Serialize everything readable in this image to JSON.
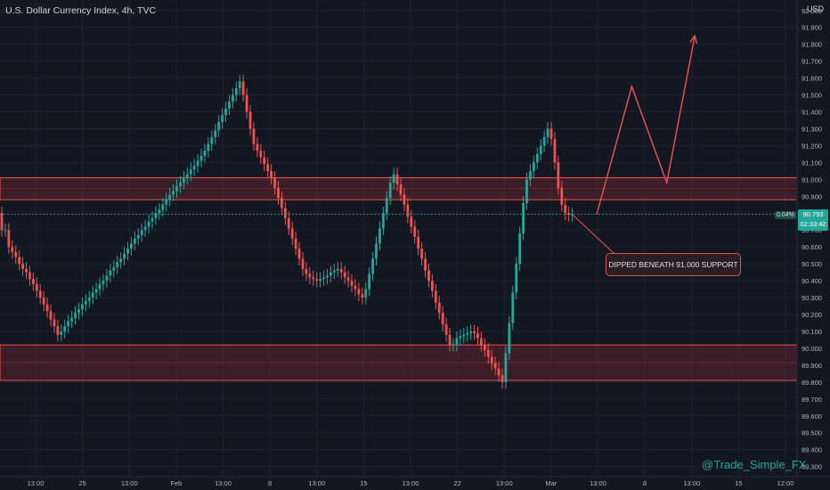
{
  "header": {
    "title": "U.S. Dollar Currency Index, 4h, TVC",
    "currency": "USD"
  },
  "last_price": {
    "price": "90.793",
    "countdown": "02:33:42",
    "change_pct": "0.04%"
  },
  "annotation": {
    "text": "DIPPED BENEATH 91.000 SUPPORT"
  },
  "watermark": {
    "text": "@Trade_Simple_FX"
  },
  "colors": {
    "background": "#131722",
    "up": "#26a69a",
    "down": "#ef5350",
    "zone": "#b2303a",
    "arrow": "#ef5350"
  },
  "chart_data": {
    "type": "candlestick",
    "title": "U.S. Dollar Currency Index, 4h, TVC",
    "ylim": [
      89.24,
      92.02
    ],
    "y_ticks": [
      "92.000",
      "91.900",
      "91.800",
      "91.700",
      "91.600",
      "91.500",
      "91.400",
      "91.300",
      "91.200",
      "91.100",
      "91.000",
      "90.900",
      "90.800",
      "90.700",
      "90.600",
      "90.500",
      "90.400",
      "90.300",
      "90.200",
      "90.100",
      "90.000",
      "89.900",
      "89.800",
      "89.700",
      "89.600",
      "89.500",
      "89.400",
      "89.300"
    ],
    "x_ticks": [
      "13:00",
      "25",
      "13:00",
      "Feb",
      "13:00",
      "8",
      "13:00",
      "15",
      "13:00",
      "22",
      "13:00",
      "Mar",
      "13:00",
      "8",
      "13:00",
      "15",
      "12:00"
    ],
    "grid": true,
    "zones": [
      {
        "name": "resistance",
        "from": 90.88,
        "to": 91.01
      },
      {
        "name": "support",
        "from": 89.81,
        "to": 90.02
      }
    ],
    "projected_path": [
      {
        "index": 170,
        "price": 90.793
      },
      {
        "index": 180,
        "price": 91.55
      },
      {
        "index": 190,
        "price": 90.98
      },
      {
        "index": 198,
        "price": 91.85
      }
    ],
    "candles": [
      [
        90.8,
        90.7
      ],
      [
        90.7,
        90.7
      ],
      [
        90.7,
        90.6
      ],
      [
        90.6,
        90.57
      ],
      [
        90.57,
        90.54
      ],
      [
        90.54,
        90.5
      ],
      [
        90.5,
        90.47
      ],
      [
        90.47,
        90.45
      ],
      [
        90.45,
        90.41
      ],
      [
        90.41,
        90.38
      ],
      [
        90.38,
        90.34
      ],
      [
        90.34,
        90.3
      ],
      [
        90.3,
        90.26
      ],
      [
        90.26,
        90.22
      ],
      [
        90.22,
        90.17
      ],
      [
        90.17,
        90.13
      ],
      [
        90.13,
        90.08
      ],
      [
        90.08,
        90.1
      ],
      [
        90.1,
        90.13
      ],
      [
        90.13,
        90.16
      ],
      [
        90.16,
        90.18
      ],
      [
        90.18,
        90.21
      ],
      [
        90.21,
        90.23
      ],
      [
        90.23,
        90.26
      ],
      [
        90.26,
        90.28
      ],
      [
        90.28,
        90.3
      ],
      [
        90.3,
        90.33
      ],
      [
        90.33,
        90.35
      ],
      [
        90.35,
        90.38
      ],
      [
        90.38,
        90.4
      ],
      [
        90.4,
        90.43
      ],
      [
        90.43,
        90.46
      ],
      [
        90.46,
        90.48
      ],
      [
        90.48,
        90.51
      ],
      [
        90.51,
        90.53
      ],
      [
        90.53,
        90.56
      ],
      [
        90.56,
        90.59
      ],
      [
        90.59,
        90.62
      ],
      [
        90.62,
        90.65
      ],
      [
        90.65,
        90.67
      ],
      [
        90.67,
        90.7
      ],
      [
        90.7,
        90.72
      ],
      [
        90.72,
        90.75
      ],
      [
        90.75,
        90.77
      ],
      [
        90.77,
        90.8
      ],
      [
        90.8,
        90.82
      ],
      [
        90.82,
        90.85
      ],
      [
        90.85,
        90.88
      ],
      [
        90.88,
        90.91
      ],
      [
        90.91,
        90.93
      ],
      [
        90.93,
        90.96
      ],
      [
        90.96,
        90.98
      ],
      [
        90.98,
        91.01
      ],
      [
        91.01,
        91.03
      ],
      [
        91.03,
        91.06
      ],
      [
        91.06,
        91.08
      ],
      [
        91.08,
        91.11
      ],
      [
        91.11,
        91.14
      ],
      [
        91.14,
        91.17
      ],
      [
        91.17,
        91.21
      ],
      [
        91.21,
        91.25
      ],
      [
        91.25,
        91.29
      ],
      [
        91.29,
        91.34
      ],
      [
        91.34,
        91.38
      ],
      [
        91.38,
        91.42
      ],
      [
        91.42,
        91.46
      ],
      [
        91.46,
        91.5
      ],
      [
        91.5,
        91.54
      ],
      [
        91.54,
        91.58
      ],
      [
        91.58,
        91.5
      ],
      [
        91.5,
        91.4
      ],
      [
        91.4,
        91.3
      ],
      [
        91.3,
        91.21
      ],
      [
        91.21,
        91.17
      ],
      [
        91.17,
        91.13
      ],
      [
        91.13,
        91.09
      ],
      [
        91.09,
        91.05
      ],
      [
        91.05,
        91.01
      ],
      [
        91.01,
        90.95
      ],
      [
        90.95,
        90.89
      ],
      [
        90.89,
        90.83
      ],
      [
        90.83,
        90.77
      ],
      [
        90.77,
        90.71
      ],
      [
        90.71,
        90.65
      ],
      [
        90.65,
        90.59
      ],
      [
        90.59,
        90.53
      ],
      [
        90.53,
        90.47
      ],
      [
        90.47,
        90.44
      ],
      [
        90.44,
        90.42
      ],
      [
        90.42,
        90.41
      ],
      [
        90.41,
        90.4
      ],
      [
        90.4,
        90.41
      ],
      [
        90.41,
        90.42
      ],
      [
        90.42,
        90.43
      ],
      [
        90.43,
        90.45
      ],
      [
        90.45,
        90.46
      ],
      [
        90.46,
        90.47
      ],
      [
        90.47,
        90.45
      ],
      [
        90.45,
        90.42
      ],
      [
        90.42,
        90.4
      ],
      [
        90.4,
        90.37
      ],
      [
        90.37,
        90.35
      ],
      [
        90.35,
        90.32
      ],
      [
        90.32,
        90.3
      ],
      [
        90.3,
        90.35
      ],
      [
        90.35,
        90.44
      ],
      [
        90.44,
        90.53
      ],
      [
        90.53,
        90.62
      ],
      [
        90.62,
        90.71
      ],
      [
        90.71,
        90.8
      ],
      [
        90.8,
        90.89
      ],
      [
        90.89,
        90.98
      ],
      [
        90.98,
        91.03
      ],
      [
        91.03,
        90.97
      ],
      [
        90.97,
        90.91
      ],
      [
        90.91,
        90.85
      ],
      [
        90.85,
        90.78
      ],
      [
        90.78,
        90.72
      ],
      [
        90.72,
        90.66
      ],
      [
        90.66,
        90.59
      ],
      [
        90.59,
        90.53
      ],
      [
        90.53,
        90.46
      ],
      [
        90.46,
        90.4
      ],
      [
        90.4,
        90.34
      ],
      [
        90.34,
        90.27
      ],
      [
        90.27,
        90.21
      ],
      [
        90.21,
        90.14
      ],
      [
        90.14,
        90.08
      ],
      [
        90.08,
        90.02
      ],
      [
        90.02,
        90.02
      ],
      [
        90.02,
        90.06
      ],
      [
        90.06,
        90.07
      ],
      [
        90.07,
        90.08
      ],
      [
        90.08,
        90.09
      ],
      [
        90.09,
        90.1
      ],
      [
        90.1,
        90.09
      ],
      [
        90.09,
        90.06
      ],
      [
        90.06,
        90.02
      ],
      [
        90.02,
        89.99
      ],
      [
        89.99,
        89.95
      ],
      [
        89.95,
        89.91
      ],
      [
        89.91,
        89.88
      ],
      [
        89.88,
        89.84
      ],
      [
        89.84,
        89.8
      ],
      [
        89.8,
        89.97
      ],
      [
        89.97,
        90.15
      ],
      [
        90.15,
        90.33
      ],
      [
        90.33,
        90.5
      ],
      [
        90.5,
        90.68
      ],
      [
        90.68,
        90.86
      ],
      [
        90.86,
        91.0
      ],
      [
        91.0,
        91.05
      ],
      [
        91.05,
        91.1
      ],
      [
        91.1,
        91.15
      ],
      [
        91.15,
        91.2
      ],
      [
        91.2,
        91.25
      ],
      [
        91.25,
        91.3
      ],
      [
        91.3,
        91.24
      ],
      [
        91.24,
        91.1
      ],
      [
        91.1,
        90.95
      ],
      [
        90.95,
        90.85
      ],
      [
        90.85,
        90.8
      ],
      [
        90.8,
        90.79
      ],
      [
        90.79,
        90.79
      ]
    ]
  }
}
